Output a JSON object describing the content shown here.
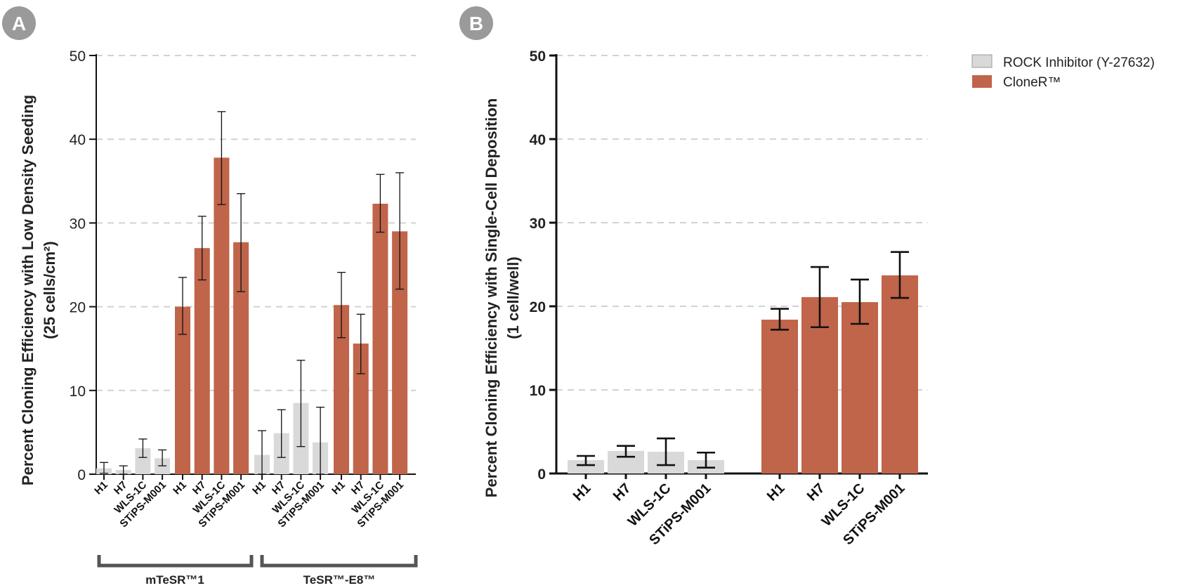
{
  "panels": {
    "a_label": "A",
    "b_label": "B"
  },
  "legend": [
    {
      "label": "ROCK Inhibitor (Y-27632)",
      "color": "#d9d9d9"
    },
    {
      "label": "CloneR™",
      "color": "#c0644a"
    }
  ],
  "chart_data": [
    {
      "type": "bar",
      "panel": "A",
      "ylabel_line1": "Percent Cloning Efficiency with Low Density Seeding",
      "ylabel_line2": "(25 cells/cm²)",
      "ylim": [
        0,
        50
      ],
      "yticks": [
        0,
        10,
        20,
        30,
        40,
        50
      ],
      "grid": true,
      "groups": [
        {
          "label": "mTeSR™1",
          "sets": [
            {
              "series": "ROCK Inhibitor (Y-27632)",
              "categories": [
                "H1",
                "H7",
                "WLS-1C",
                "STiPS-M001"
              ],
              "values": [
                0.7,
                0.5,
                3.1,
                1.9
              ],
              "err_low": [
                0.1,
                0.0,
                2.0,
                1.0
              ],
              "err_high": [
                1.4,
                1.0,
                4.2,
                2.9
              ]
            },
            {
              "series": "CloneR™",
              "categories": [
                "H1",
                "H7",
                "WLS-1C",
                "STiPS-M001"
              ],
              "values": [
                20.0,
                27.0,
                37.8,
                27.7
              ],
              "err_low": [
                16.7,
                23.2,
                32.2,
                21.8
              ],
              "err_high": [
                23.5,
                30.8,
                43.3,
                33.5
              ]
            }
          ]
        },
        {
          "label": "TeSR™-E8™",
          "sets": [
            {
              "series": "ROCK Inhibitor (Y-27632)",
              "categories": [
                "H1",
                "H7",
                "WLS-1C",
                "STiPS-M001"
              ],
              "values": [
                2.3,
                4.9,
                8.5,
                3.8
              ],
              "err_low": [
                0.0,
                2.0,
                3.3,
                0.0
              ],
              "err_high": [
                5.2,
                7.7,
                13.6,
                8.0
              ]
            },
            {
              "series": "CloneR™",
              "categories": [
                "H1",
                "H7",
                "WLS-1C",
                "STiPS-M001"
              ],
              "values": [
                20.2,
                15.6,
                32.3,
                29.0
              ],
              "err_low": [
                16.3,
                12.0,
                28.9,
                22.1
              ],
              "err_high": [
                24.1,
                19.1,
                35.8,
                36.0
              ]
            }
          ]
        }
      ]
    },
    {
      "type": "bar",
      "panel": "B",
      "ylabel_line1": "Percent Cloning Efficiency with Single-Cell Deposition",
      "ylabel_line2": "(1 cell/well)",
      "ylim": [
        0,
        50
      ],
      "yticks": [
        0,
        10,
        20,
        30,
        40,
        50
      ],
      "grid": true,
      "sets": [
        {
          "series": "ROCK Inhibitor (Y-27632)",
          "categories": [
            "H1",
            "H7",
            "WLS-1C",
            "STiPS-M001"
          ],
          "values": [
            1.6,
            2.7,
            2.6,
            1.6
          ],
          "err_low": [
            1.0,
            2.0,
            1.0,
            0.7
          ],
          "err_high": [
            2.1,
            3.3,
            4.2,
            2.5
          ]
        },
        {
          "series": "CloneR™",
          "categories": [
            "H1",
            "H7",
            "WLS-1C",
            "STiPS-M001"
          ],
          "values": [
            18.4,
            21.1,
            20.5,
            23.7
          ],
          "err_low": [
            17.2,
            17.5,
            17.9,
            21.0
          ],
          "err_high": [
            19.7,
            24.7,
            23.2,
            26.5
          ]
        }
      ]
    }
  ]
}
